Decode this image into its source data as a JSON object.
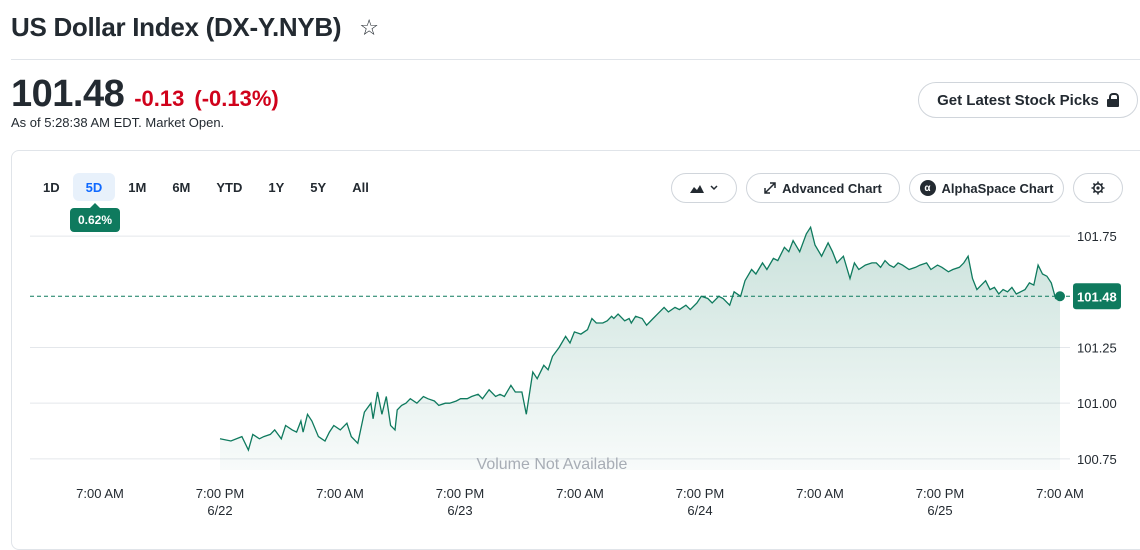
{
  "header": {
    "title": "US Dollar Index (DX-Y.NYB)",
    "price": "101.48",
    "change": "-0.13",
    "change_percent": "(-0.13%)",
    "as_of": "As of 5:28:38 AM EDT. Market Open.",
    "picks_label": "Get Latest Stock Picks"
  },
  "toolbar": {
    "ranges": [
      "1D",
      "5D",
      "1M",
      "6M",
      "YTD",
      "1Y",
      "5Y",
      "All"
    ],
    "active_range": "5D",
    "performance": "0.62%",
    "chart_type_icon": "mountain-icon",
    "advanced_label": "Advanced Chart",
    "alphaspace_label": "AlphaSpace Chart",
    "settings_icon": "gear-icon"
  },
  "colors": {
    "line": "#0f7a5e",
    "negative": "#d0021b",
    "active_tab": "#0f69ff"
  },
  "chart_data": {
    "type": "area",
    "ylim": [
      100.7,
      101.8
    ],
    "y_ticks": [
      "101.75",
      "101.25",
      "101.00",
      "100.75"
    ],
    "x_tick_times": [
      "7:00 AM",
      "7:00 PM",
      "7:00 AM",
      "7:00 PM",
      "7:00 AM",
      "7:00 PM",
      "7:00 AM",
      "7:00 PM",
      "7:00 AM"
    ],
    "x_tick_dates": [
      "6/22",
      "6/23",
      "6/24",
      "6/25"
    ],
    "current_price": 101.48,
    "current_price_label": "101.48",
    "volume_note": "Volume Not Available",
    "series": [
      {
        "x": [
          0.0,
          0.5,
          1.0,
          1.3,
          1.5,
          1.8,
          2.0,
          2.3,
          2.5,
          2.8,
          3.0,
          3.3,
          3.5,
          3.7,
          3.8,
          4.0,
          4.2,
          4.5,
          4.8,
          5.0,
          5.2,
          5.5,
          5.8,
          6.0,
          6.3,
          6.6,
          6.9,
          7.0,
          7.2,
          7.4,
          7.6,
          7.8,
          8.0,
          8.1,
          8.3,
          8.5,
          8.7,
          9.0,
          9.3,
          9.5,
          9.8,
          10.0,
          10.3,
          10.5,
          10.8,
          11.0,
          11.3,
          11.5,
          11.8,
          12.0,
          12.3,
          12.6,
          12.8,
          13.0,
          13.3,
          13.5,
          13.8,
          14.0,
          14.3,
          14.5,
          14.8,
          15.0,
          15.2,
          15.5,
          15.8,
          16.0,
          16.2,
          16.5,
          16.8,
          17.0,
          17.2,
          17.5,
          17.7,
          17.9,
          18.0,
          18.2,
          18.5,
          18.7,
          18.8,
          19.0,
          19.3,
          19.5,
          19.8,
          20.0,
          20.3,
          20.5,
          20.8,
          21.0,
          21.3,
          21.5,
          21.8,
          22.0,
          22.3,
          22.5,
          22.8,
          23.0,
          23.3,
          23.5,
          23.8,
          24.0,
          24.3,
          24.5,
          24.8,
          25.0,
          25.3,
          25.5,
          25.8,
          26.0,
          26.2,
          26.5,
          26.8,
          27.0,
          27.2,
          27.5,
          27.8,
          28.0,
          28.2,
          28.5,
          28.8,
          29.0,
          29.2,
          29.5,
          29.8,
          30.0,
          30.2,
          30.4,
          30.6,
          30.8,
          31.0,
          31.2,
          31.5,
          31.8,
          32.0,
          32.3,
          32.5,
          32.8,
          33.0,
          33.3,
          33.5,
          33.8,
          34.0,
          34.2,
          34.4,
          34.6,
          34.8,
          35.0,
          35.2,
          35.4,
          35.6,
          35.8,
          36.0,
          36.2,
          36.4,
          36.6,
          36.8,
          37.0,
          37.2,
          37.4,
          37.6,
          37.8,
          38.0,
          38.2,
          38.4
        ],
        "y": [
          100.84,
          100.83,
          100.85,
          100.79,
          100.86,
          100.84,
          100.85,
          100.86,
          100.88,
          100.84,
          100.9,
          100.88,
          100.87,
          100.92,
          100.87,
          100.95,
          100.92,
          100.85,
          100.83,
          100.87,
          100.9,
          100.88,
          100.91,
          100.85,
          100.82,
          100.96,
          101.0,
          100.93,
          101.05,
          100.95,
          101.03,
          100.9,
          100.88,
          100.97,
          100.99,
          101.0,
          101.02,
          101.0,
          101.03,
          101.02,
          101.01,
          100.99,
          101.0,
          101.0,
          101.01,
          101.02,
          101.02,
          101.03,
          101.04,
          101.02,
          101.06,
          101.03,
          101.04,
          101.03,
          101.08,
          101.05,
          101.05,
          100.95,
          101.14,
          101.11,
          101.17,
          101.15,
          101.21,
          101.25,
          101.3,
          101.27,
          101.32,
          101.31,
          101.33,
          101.38,
          101.36,
          101.36,
          101.37,
          101.39,
          101.38,
          101.4,
          101.37,
          101.38,
          101.36,
          101.39,
          101.38,
          101.35,
          101.38,
          101.4,
          101.43,
          101.41,
          101.43,
          101.42,
          101.44,
          101.42,
          101.45,
          101.48,
          101.47,
          101.45,
          101.48,
          101.47,
          101.44,
          101.5,
          101.48,
          101.55,
          101.6,
          101.58,
          101.63,
          101.6,
          101.65,
          101.64,
          101.7,
          101.68,
          101.73,
          101.68,
          101.76,
          101.79,
          101.71,
          101.66,
          101.72,
          101.68,
          101.63,
          101.66,
          101.56,
          101.63,
          101.6,
          101.62,
          101.63,
          101.63,
          101.61,
          101.64,
          101.62,
          101.61,
          101.63,
          101.62,
          101.6,
          101.61,
          101.62,
          101.63,
          101.6,
          101.62,
          101.61,
          101.59,
          101.6,
          101.61,
          101.63,
          101.66,
          101.56,
          101.51,
          101.53,
          101.55,
          101.51,
          101.52,
          101.49,
          101.51,
          101.5,
          101.52,
          101.49,
          101.5,
          101.51,
          101.54,
          101.53,
          101.62,
          101.58,
          101.57,
          101.54,
          101.47,
          101.48
        ]
      }
    ]
  }
}
